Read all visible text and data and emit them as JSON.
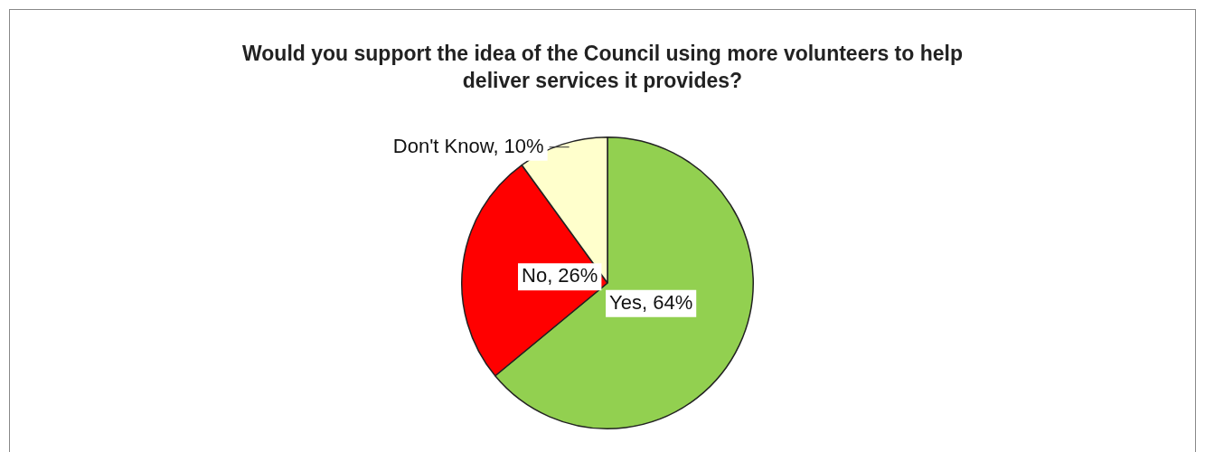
{
  "chart_data": {
    "type": "pie",
    "title": "Would you support the idea of the Council using more volunteers to help deliver services it provides?",
    "categories": [
      "Yes",
      "No",
      "Don't Know"
    ],
    "values": [
      64,
      26,
      10
    ],
    "colors": [
      "#92d050",
      "#ff0000",
      "#ffffcc"
    ],
    "value_labels": [
      "64%",
      "26%",
      "10%"
    ],
    "legend": false
  }
}
